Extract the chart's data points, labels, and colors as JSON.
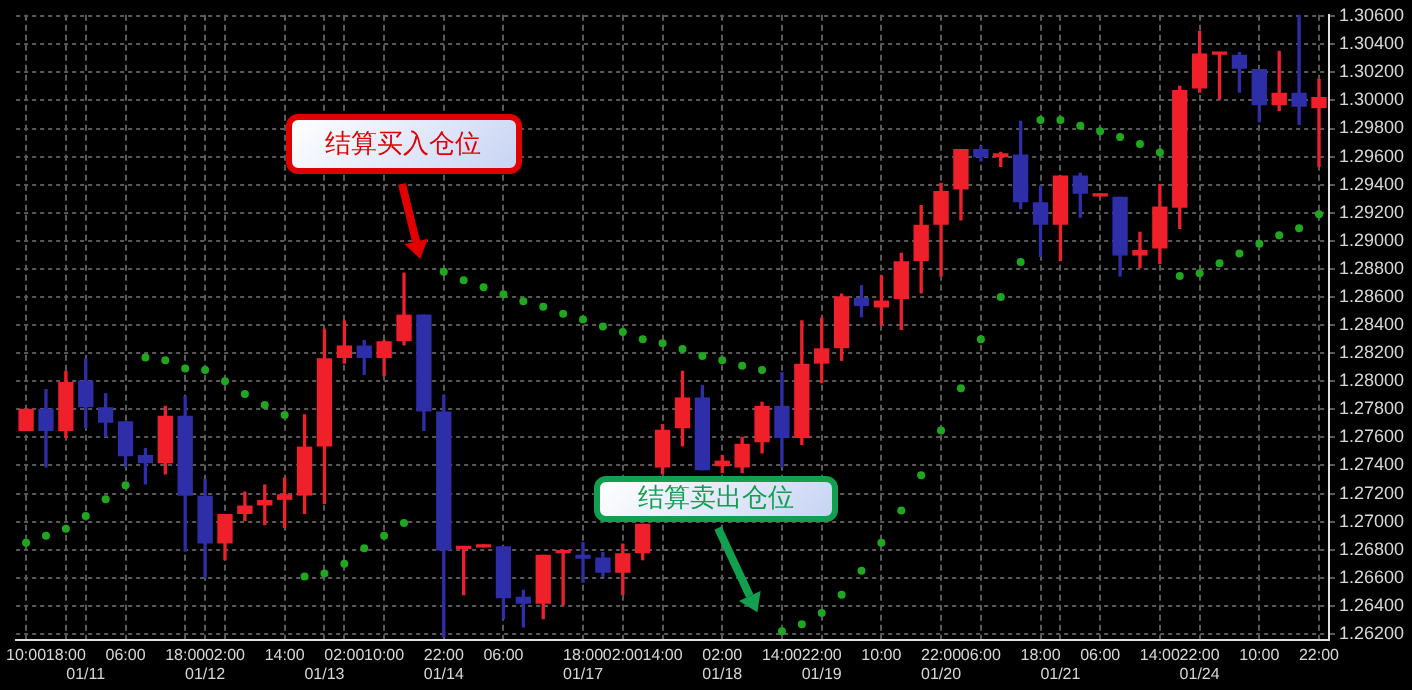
{
  "chart_data": {
    "type": "candlestick",
    "categories": [
      "10:00",
      null,
      "18:00",
      "\n01/11",
      null,
      "06:00",
      null,
      null,
      "18:00",
      "\n01/12",
      "02:00",
      null,
      null,
      "14:00",
      null,
      "\n01/13",
      "02:00",
      null,
      "10:00",
      null,
      null,
      "22:00\n01/14",
      null,
      null,
      "06:00",
      null,
      null,
      null,
      "18:00\n01/17",
      null,
      "02:00",
      null,
      "14:00",
      null,
      null,
      "02:00\n01/18",
      null,
      null,
      "14:00",
      null,
      "22:00\n01/19",
      null,
      null,
      "10:00",
      null,
      null,
      "22:00\n01/20",
      null,
      "06:00",
      null,
      null,
      "18:00",
      "\n01/21",
      null,
      "06:00",
      null,
      null,
      "14:00",
      null,
      "22:00\n01/24",
      null,
      null,
      "10:00",
      null,
      null,
      "22:00"
    ],
    "ohlc": [
      [
        1.2765,
        1.278,
        1.2765,
        1.278
      ],
      [
        1.278,
        1.2794,
        1.2739,
        1.2765
      ],
      [
        1.2765,
        1.2807,
        1.276,
        1.2799
      ],
      [
        1.28,
        1.2816,
        1.2767,
        1.2782
      ],
      [
        1.2781,
        1.2791,
        1.2761,
        1.2771
      ],
      [
        1.2771,
        1.2771,
        1.2739,
        1.2747
      ],
      [
        1.2747,
        1.2752,
        1.2727,
        1.2742
      ],
      [
        1.2742,
        1.2782,
        1.2734,
        1.2775
      ],
      [
        1.2775,
        1.2789,
        1.2679,
        1.2719
      ],
      [
        1.2718,
        1.273,
        1.266,
        1.2685
      ],
      [
        1.2685,
        1.2705,
        1.2673,
        1.2705
      ],
      [
        1.2706,
        1.2721,
        1.2701,
        1.2711
      ],
      [
        1.2712,
        1.2726,
        1.2698,
        1.2715
      ],
      [
        1.2716,
        1.2731,
        1.2696,
        1.2719
      ],
      [
        1.2719,
        1.2776,
        1.2706,
        1.2753
      ],
      [
        1.2754,
        1.2837,
        1.2713,
        1.2816
      ],
      [
        1.2817,
        1.2843,
        1.2813,
        1.2825
      ],
      [
        1.2825,
        1.2829,
        1.2805,
        1.2817
      ],
      [
        1.2817,
        1.2829,
        1.2804,
        1.2828
      ],
      [
        1.2829,
        1.2877,
        1.2826,
        1.2847
      ],
      [
        1.2847,
        1.2847,
        1.2765,
        1.2779
      ],
      [
        1.2778,
        1.279,
        1.2618,
        1.268
      ],
      [
        1.2681,
        1.2681,
        1.2648,
        1.2681
      ],
      [
        1.2682,
        1.2682,
        1.2682,
        1.2682
      ],
      [
        1.2682,
        1.2682,
        1.2631,
        1.2646
      ],
      [
        1.2646,
        1.2651,
        1.2625,
        1.2642
      ],
      [
        1.2642,
        1.2676,
        1.2631,
        1.2676
      ],
      [
        1.2678,
        1.2678,
        1.2641,
        1.2678
      ],
      [
        1.2676,
        1.2685,
        1.2657,
        1.2674
      ],
      [
        1.2674,
        1.2678,
        1.2661,
        1.2664
      ],
      [
        1.2664,
        1.2684,
        1.2648,
        1.2677
      ],
      [
        1.2678,
        1.2698,
        1.2673,
        1.2698
      ],
      [
        1.2739,
        1.2769,
        1.2734,
        1.2765
      ],
      [
        1.2767,
        1.2807,
        1.2754,
        1.2788
      ],
      [
        1.2788,
        1.2797,
        1.2737,
        1.2737
      ],
      [
        1.274,
        1.2747,
        1.2735,
        1.2743
      ],
      [
        1.2739,
        1.276,
        1.2735,
        1.2755
      ],
      [
        1.2757,
        1.2785,
        1.2749,
        1.2782
      ],
      [
        1.2782,
        1.2806,
        1.2739,
        1.276
      ],
      [
        1.276,
        1.2843,
        1.2755,
        1.2812
      ],
      [
        1.2813,
        1.2845,
        1.2799,
        1.2823
      ],
      [
        1.2824,
        1.2862,
        1.2815,
        1.286
      ],
      [
        1.2859,
        1.2868,
        1.2846,
        1.2854
      ],
      [
        1.2853,
        1.2875,
        1.284,
        1.2857
      ],
      [
        1.2859,
        1.2891,
        1.2837,
        1.2885
      ],
      [
        1.2886,
        1.2925,
        1.2863,
        1.2911
      ],
      [
        1.2912,
        1.2941,
        1.2875,
        1.2935
      ],
      [
        1.2937,
        1.2965,
        1.2915,
        1.2965
      ],
      [
        1.2965,
        1.2967,
        1.2957,
        1.296
      ],
      [
        1.296,
        1.2963,
        1.2953,
        1.2962
      ],
      [
        1.2961,
        1.2985,
        1.2923,
        1.2928
      ],
      [
        1.2927,
        1.2939,
        1.2889,
        1.2912
      ],
      [
        1.2912,
        1.2946,
        1.2886,
        1.2946
      ],
      [
        1.2946,
        1.2948,
        1.2917,
        1.2934
      ],
      [
        1.2932,
        1.2932,
        1.2932,
        1.2932
      ],
      [
        1.2931,
        1.2931,
        1.2875,
        1.289
      ],
      [
        1.289,
        1.2906,
        1.2881,
        1.2893
      ],
      [
        1.2895,
        1.294,
        1.2884,
        1.2924
      ],
      [
        1.2924,
        1.301,
        1.2909,
        1.3007
      ],
      [
        1.3009,
        1.3049,
        1.3006,
        1.3033
      ],
      [
        1.3033,
        1.3033,
        1.3001,
        1.3033
      ],
      [
        1.3032,
        1.3034,
        1.3006,
        1.3023
      ],
      [
        1.3022,
        1.3022,
        1.2985,
        1.2997
      ],
      [
        1.2997,
        1.3035,
        1.2993,
        1.3005
      ],
      [
        1.3005,
        1.3061,
        1.2983,
        1.2996
      ],
      [
        1.2995,
        1.3015,
        1.2953,
        1.3002
      ]
    ],
    "colors": [
      "#f0202a",
      "#2e2ea8",
      "#f0202a",
      "#2e2ea8",
      "#2e2ea8",
      "#2e2ea8",
      "#2e2ea8",
      "#f0202a",
      "#2e2ea8",
      "#2e2ea8",
      "#f0202a",
      "#f0202a",
      "#f0202a",
      "#f0202a",
      "#f0202a",
      "#f0202a",
      "#f0202a",
      "#2e2ea8",
      "#f0202a",
      "#f0202a",
      "#2e2ea8",
      "#2e2ea8",
      "#f0202a",
      "#f0202a",
      "#2e2ea8",
      "#2e2ea8",
      "#f0202a",
      "#f0202a",
      "#2e2ea8",
      "#2e2ea8",
      "#f0202a",
      "#f0202a",
      "#f0202a",
      "#f0202a",
      "#2e2ea8",
      "#f0202a",
      "#f0202a",
      "#f0202a",
      "#2e2ea8",
      "#f0202a",
      "#f0202a",
      "#f0202a",
      "#2e2ea8",
      "#f0202a",
      "#f0202a",
      "#f0202a",
      "#f0202a",
      "#f0202a",
      "#2e2ea8",
      "#f0202a",
      "#2e2ea8",
      "#2e2ea8",
      "#f0202a",
      "#2e2ea8",
      "#f0202a",
      "#2e2ea8",
      "#f0202a",
      "#f0202a",
      "#f0202a",
      "#f0202a",
      "#f0202a",
      "#2e2ea8",
      "#2e2ea8",
      "#f0202a",
      "#2e2ea8",
      "#f0202a"
    ],
    "series": [
      {
        "type": "scatter",
        "color": "#1fa81f",
        "values": [
          1.2685,
          1.269,
          1.2695,
          1.2704,
          1.2716,
          1.2726,
          1.2817,
          1.2815,
          1.2809,
          1.2808,
          1.28,
          1.2791,
          1.2783,
          1.2776,
          1.2661,
          1.2663,
          1.267,
          1.2681,
          1.269,
          1.2699,
          null,
          1.2878,
          1.2872,
          1.2867,
          1.2862,
          1.2857,
          1.2853,
          1.2848,
          1.2844,
          1.2839,
          1.2835,
          1.283,
          1.2827,
          1.2823,
          1.2818,
          1.2815,
          1.2811,
          1.2808,
          1.2622,
          1.2627,
          1.2635,
          1.2648,
          1.2665,
          1.2685,
          1.2708,
          1.2733,
          1.2765,
          1.2795,
          1.283,
          1.286,
          1.2885,
          1.2986,
          1.2986,
          1.2982,
          1.2978,
          1.2974,
          1.2969,
          1.2963,
          1.2875,
          1.2877,
          1.2884,
          1.2891,
          1.2898,
          1.2904,
          1.2909,
          1.2919
        ]
      }
    ],
    "marker": "circle",
    "ylim": [
      1.2616,
      1.3061
    ],
    "yticks": [
      {
        "value": 1.262,
        "label": "1.26200"
      },
      {
        "value": 1.264,
        "label": "1.26400"
      },
      {
        "value": 1.266,
        "label": "1.26600"
      },
      {
        "value": 1.268,
        "label": "1.26800"
      },
      {
        "value": 1.27,
        "label": "1.27000"
      },
      {
        "value": 1.272,
        "label": "1.27200"
      },
      {
        "value": 1.274,
        "label": "1.27400"
      },
      {
        "value": 1.276,
        "label": "1.27600"
      },
      {
        "value": 1.278,
        "label": "1.27800"
      },
      {
        "value": 1.28,
        "label": "1.28000"
      },
      {
        "value": 1.282,
        "label": "1.28200"
      },
      {
        "value": 1.284,
        "label": "1.28400"
      },
      {
        "value": 1.286,
        "label": "1.28600"
      },
      {
        "value": 1.288,
        "label": "1.28800"
      },
      {
        "value": 1.29,
        "label": "1.29000"
      },
      {
        "value": 1.292,
        "label": "1.29200"
      },
      {
        "value": 1.294,
        "label": "1.29400"
      },
      {
        "value": 1.296,
        "label": "1.29600"
      },
      {
        "value": 1.298,
        "label": "1.29800"
      },
      {
        "value": 1.3,
        "label": "1.30000"
      },
      {
        "value": 1.302,
        "label": "1.30200"
      },
      {
        "value": 1.304,
        "label": "1.30400"
      },
      {
        "value": 1.306,
        "label": "1.30600"
      }
    ],
    "grid": true,
    "annotations": [
      "结算买入仓位",
      "结算卖出仓位"
    ]
  }
}
